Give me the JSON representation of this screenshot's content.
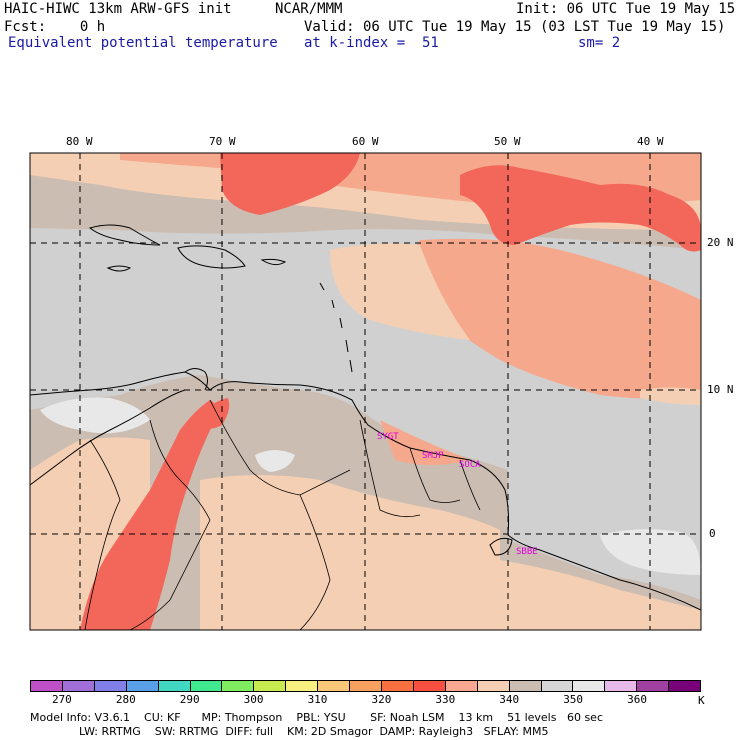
{
  "header": {
    "model": "HAIC-HIWC 13km ARW-GFS init",
    "center": "NCAR/MMM",
    "init": "Init: 06 UTC Tue 19 May 15",
    "fcst": "Fcst:    0 h",
    "valid": "Valid: 06 UTC Tue 19 May 15 (03 LST Tue 19 May 15)",
    "field": "Equivalent potential temperature",
    "level": "at k-index =  51",
    "smooth": "sm= 2"
  },
  "map": {
    "lon_labels": [
      "80 W",
      "70 W",
      "60 W",
      "50 W",
      "40 W"
    ],
    "lat_labels": [
      "20 N",
      "10 N",
      "0"
    ],
    "stations": [
      "SBBE",
      "SMJP",
      "SOCA",
      "SYGT"
    ],
    "colors": {
      "warm_gray": "#cbbdb2",
      "light_gray": "#d0d0d0",
      "peach": "#f5cfb3",
      "salmon": "#f6a88d",
      "red": "#f2675a",
      "station": "#e000e0"
    }
  },
  "colorbar": {
    "ticks": [
      "270",
      "280",
      "290",
      "300",
      "310",
      "320",
      "330",
      "340",
      "350",
      "360"
    ],
    "unit": "K",
    "colors": [
      "#c050c8",
      "#a070d8",
      "#8080e8",
      "#5aa0e8",
      "#40d8c0",
      "#40e890",
      "#80ec60",
      "#c8ec50",
      "#f8f080",
      "#f8c878",
      "#f8a060",
      "#f87040",
      "#f85040",
      "#f8a890",
      "#f5cfb3",
      "#cbbdb2",
      "#d6d6d6",
      "#e8e8e8",
      "#e8b8e8",
      "#a040a0",
      "#780078"
    ]
  },
  "footer": {
    "line1": "Model Info: V3.6.1    CU: KF      MP: Thompson    PBL: YSU       SF: Noah LSM    13 km    51 levels   60 sec",
    "line2": "              LW: RRTMG    SW: RRTMG  DIFF: full    KM: 2D Smagor  DAMP: Rayleigh3   SFLAY: MM5"
  }
}
